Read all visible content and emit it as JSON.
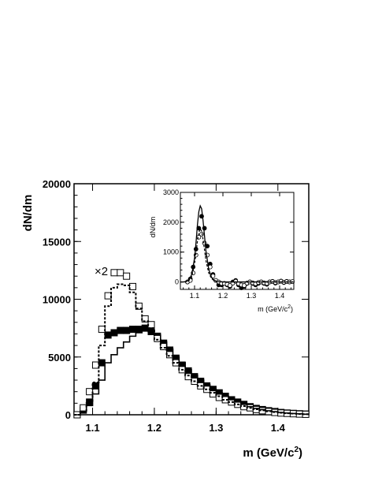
{
  "chart_data": [
    {
      "type": "line",
      "xlabel": "m (GeV/c",
      "xlabel_sup": "2",
      "xlabel_close": ")",
      "ylabel": "dN/dm",
      "xlim": [
        1.07,
        1.45
      ],
      "ylim": [
        0,
        20000
      ],
      "x_ticks": [
        1.1,
        1.2,
        1.3,
        1.4
      ],
      "x_tick_labels": [
        "1.1",
        "1.2",
        "1.3",
        "1.4"
      ],
      "y_ticks": [
        0,
        5000,
        10000,
        15000,
        20000
      ],
      "y_tick_labels": [
        "0",
        "5000",
        "10000",
        "15000",
        "20000"
      ],
      "annotation": "×2",
      "bin_width": 0.01,
      "grid": false,
      "series": [
        {
          "style": "filled-squares",
          "x": [
            1.075,
            1.085,
            1.095,
            1.105,
            1.115,
            1.125,
            1.135,
            1.145,
            1.155,
            1.165,
            1.175,
            1.185,
            1.195,
            1.205,
            1.215,
            1.225,
            1.235,
            1.245,
            1.255,
            1.265,
            1.275,
            1.285,
            1.295,
            1.305,
            1.315,
            1.325,
            1.335,
            1.345,
            1.355,
            1.365,
            1.375,
            1.385,
            1.395,
            1.405,
            1.415,
            1.425,
            1.435,
            1.445
          ],
          "y": [
            0,
            400,
            1100,
            2500,
            4500,
            6900,
            7100,
            7300,
            7300,
            7400,
            7400,
            7500,
            7200,
            6800,
            6200,
            5600,
            4900,
            4300,
            3800,
            3300,
            2900,
            2500,
            2200,
            1900,
            1600,
            1300,
            1100,
            900,
            700,
            550,
            450,
            350,
            280,
            200,
            150,
            120,
            90,
            60
          ]
        },
        {
          "style": "open-squares",
          "x": [
            1.075,
            1.085,
            1.095,
            1.105,
            1.115,
            1.125,
            1.135,
            1.145,
            1.155,
            1.165,
            1.175,
            1.185,
            1.195,
            1.205,
            1.215,
            1.225,
            1.235,
            1.245,
            1.255,
            1.265,
            1.275,
            1.285,
            1.295,
            1.305,
            1.315,
            1.325,
            1.335,
            1.345,
            1.355,
            1.365,
            1.375,
            1.385,
            1.395,
            1.405,
            1.415,
            1.425,
            1.435,
            1.445
          ],
          "y": [
            0,
            600,
            2000,
            4300,
            7400,
            10300,
            12300,
            12300,
            12000,
            11100,
            9400,
            8300,
            7800,
            6600,
            5900,
            5200,
            4500,
            3900,
            3300,
            2900,
            2500,
            2200,
            1800,
            1500,
            1300,
            1100,
            900,
            700,
            600,
            450,
            350,
            280,
            200,
            150,
            120,
            90,
            60,
            40
          ]
        },
        {
          "style": "dashed-step",
          "x": [
            1.075,
            1.085,
            1.095,
            1.105,
            1.115,
            1.125,
            1.135,
            1.145,
            1.155,
            1.165,
            1.175,
            1.185,
            1.195,
            1.205,
            1.215,
            1.225,
            1.235,
            1.245,
            1.255,
            1.265,
            1.275,
            1.285,
            1.295,
            1.305,
            1.315,
            1.325,
            1.335,
            1.345,
            1.355,
            1.365,
            1.375,
            1.385,
            1.395,
            1.405,
            1.415,
            1.425,
            1.435,
            1.445
          ],
          "y": [
            0,
            200,
            1000,
            2800,
            6000,
            9400,
            11000,
            11300,
            11200,
            10600,
            9200,
            8100,
            7500,
            6500,
            5800,
            5100,
            4500,
            3900,
            3400,
            2900,
            2500,
            2200,
            1900,
            1600,
            1300,
            1100,
            900,
            750,
            600,
            480,
            380,
            300,
            230,
            170,
            130,
            100,
            70,
            50
          ]
        },
        {
          "style": "solid-step",
          "x": [
            1.075,
            1.085,
            1.095,
            1.105,
            1.115,
            1.125,
            1.135,
            1.145,
            1.155,
            1.165,
            1.175,
            1.185,
            1.195,
            1.205,
            1.215,
            1.225,
            1.235,
            1.245,
            1.255,
            1.265,
            1.275,
            1.285,
            1.295,
            1.305,
            1.315,
            1.325,
            1.335,
            1.345,
            1.355,
            1.365,
            1.375,
            1.385,
            1.395,
            1.405,
            1.415,
            1.425,
            1.435,
            1.445
          ],
          "y": [
            0,
            300,
            800,
            1800,
            3000,
            4500,
            5200,
            5800,
            6300,
            6800,
            7100,
            7300,
            7200,
            6900,
            6300,
            5700,
            5000,
            4500,
            3900,
            3400,
            3000,
            2600,
            2200,
            1900,
            1600,
            1300,
            1100,
            900,
            700,
            550,
            450,
            350,
            270,
            200,
            150,
            110,
            80,
            50
          ]
        }
      ]
    },
    {
      "type": "scatter",
      "xlabel": "m (GeV/c",
      "xlabel_sup": "2",
      "xlabel_close": ")",
      "ylabel": "dN/dm",
      "xlim": [
        1.05,
        1.45
      ],
      "ylim": [
        -250,
        3000
      ],
      "x_ticks": [
        1.1,
        1.2,
        1.3,
        1.4
      ],
      "x_tick_labels": [
        "1.1",
        "1.2",
        "1.3",
        "1.4"
      ],
      "y_ticks": [
        0,
        1000,
        2000,
        3000
      ],
      "y_tick_labels": [
        "0",
        "1000",
        "2000",
        "3000"
      ],
      "grid": false,
      "series": [
        {
          "style": "filled-circles",
          "x": [
            1.075,
            1.085,
            1.095,
            1.105,
            1.115,
            1.125,
            1.135,
            1.145,
            1.155,
            1.165,
            1.175,
            1.185,
            1.195,
            1.205,
            1.215,
            1.225,
            1.235,
            1.245,
            1.255,
            1.265,
            1.275,
            1.285,
            1.295,
            1.305,
            1.315,
            1.325,
            1.335,
            1.345,
            1.355,
            1.365,
            1.375,
            1.385,
            1.395,
            1.405,
            1.415,
            1.425,
            1.435,
            1.445
          ],
          "y": [
            0,
            100,
            500,
            1100,
            1800,
            2200,
            1800,
            1200,
            600,
            250,
            50,
            -100,
            -100,
            -50,
            -100,
            -150,
            0,
            50,
            -100,
            -200,
            -150,
            -50,
            0,
            -50,
            -100,
            -50,
            0,
            -50,
            -80,
            0,
            20,
            -40,
            0,
            30,
            -20,
            20,
            0,
            10
          ]
        },
        {
          "style": "open-circles",
          "x": [
            1.075,
            1.085,
            1.095,
            1.105,
            1.115,
            1.125,
            1.135,
            1.145,
            1.155,
            1.165,
            1.175,
            1.185,
            1.195,
            1.205,
            1.215,
            1.225,
            1.235,
            1.245,
            1.255,
            1.265,
            1.275,
            1.285,
            1.295,
            1.305,
            1.315,
            1.325,
            1.335,
            1.345,
            1.355,
            1.365,
            1.375,
            1.385,
            1.395,
            1.405,
            1.415,
            1.425,
            1.435,
            1.445
          ],
          "y": [
            0,
            50,
            300,
            900,
            1500,
            1600,
            1300,
            900,
            500,
            200,
            50,
            0,
            -50,
            -50,
            -80,
            -120,
            -40,
            20,
            -60,
            -100,
            -120,
            -40,
            0,
            -30,
            -60,
            -20,
            0,
            -30,
            -50,
            0,
            10,
            -20,
            0,
            20,
            -10,
            10,
            0,
            10
          ]
        },
        {
          "style": "solid-curve",
          "x": [
            1.05,
            1.06,
            1.07,
            1.08,
            1.09,
            1.1,
            1.105,
            1.11,
            1.115,
            1.12,
            1.125,
            1.13,
            1.135,
            1.14,
            1.15,
            1.16,
            1.17,
            1.18,
            1.19,
            1.2,
            1.22,
            1.25,
            1.3,
            1.35,
            1.4,
            1.45
          ],
          "y": [
            0,
            0,
            10,
            60,
            250,
            800,
            1300,
            1900,
            2350,
            2550,
            2450,
            2050,
            1550,
            1050,
            420,
            150,
            50,
            15,
            5,
            0,
            0,
            0,
            0,
            0,
            0,
            0
          ]
        },
        {
          "style": "dashed-curve",
          "x": [
            1.05,
            1.06,
            1.07,
            1.08,
            1.09,
            1.1,
            1.105,
            1.11,
            1.115,
            1.12,
            1.125,
            1.13,
            1.135,
            1.14,
            1.15,
            1.16,
            1.17,
            1.18,
            1.19,
            1.2,
            1.22,
            1.25,
            1.3,
            1.35,
            1.4,
            1.45
          ],
          "y": [
            0,
            0,
            5,
            40,
            180,
            600,
            950,
            1350,
            1650,
            1780,
            1700,
            1420,
            1080,
            720,
            300,
            110,
            35,
            10,
            3,
            0,
            0,
            0,
            0,
            0,
            0,
            0
          ]
        }
      ]
    }
  ]
}
